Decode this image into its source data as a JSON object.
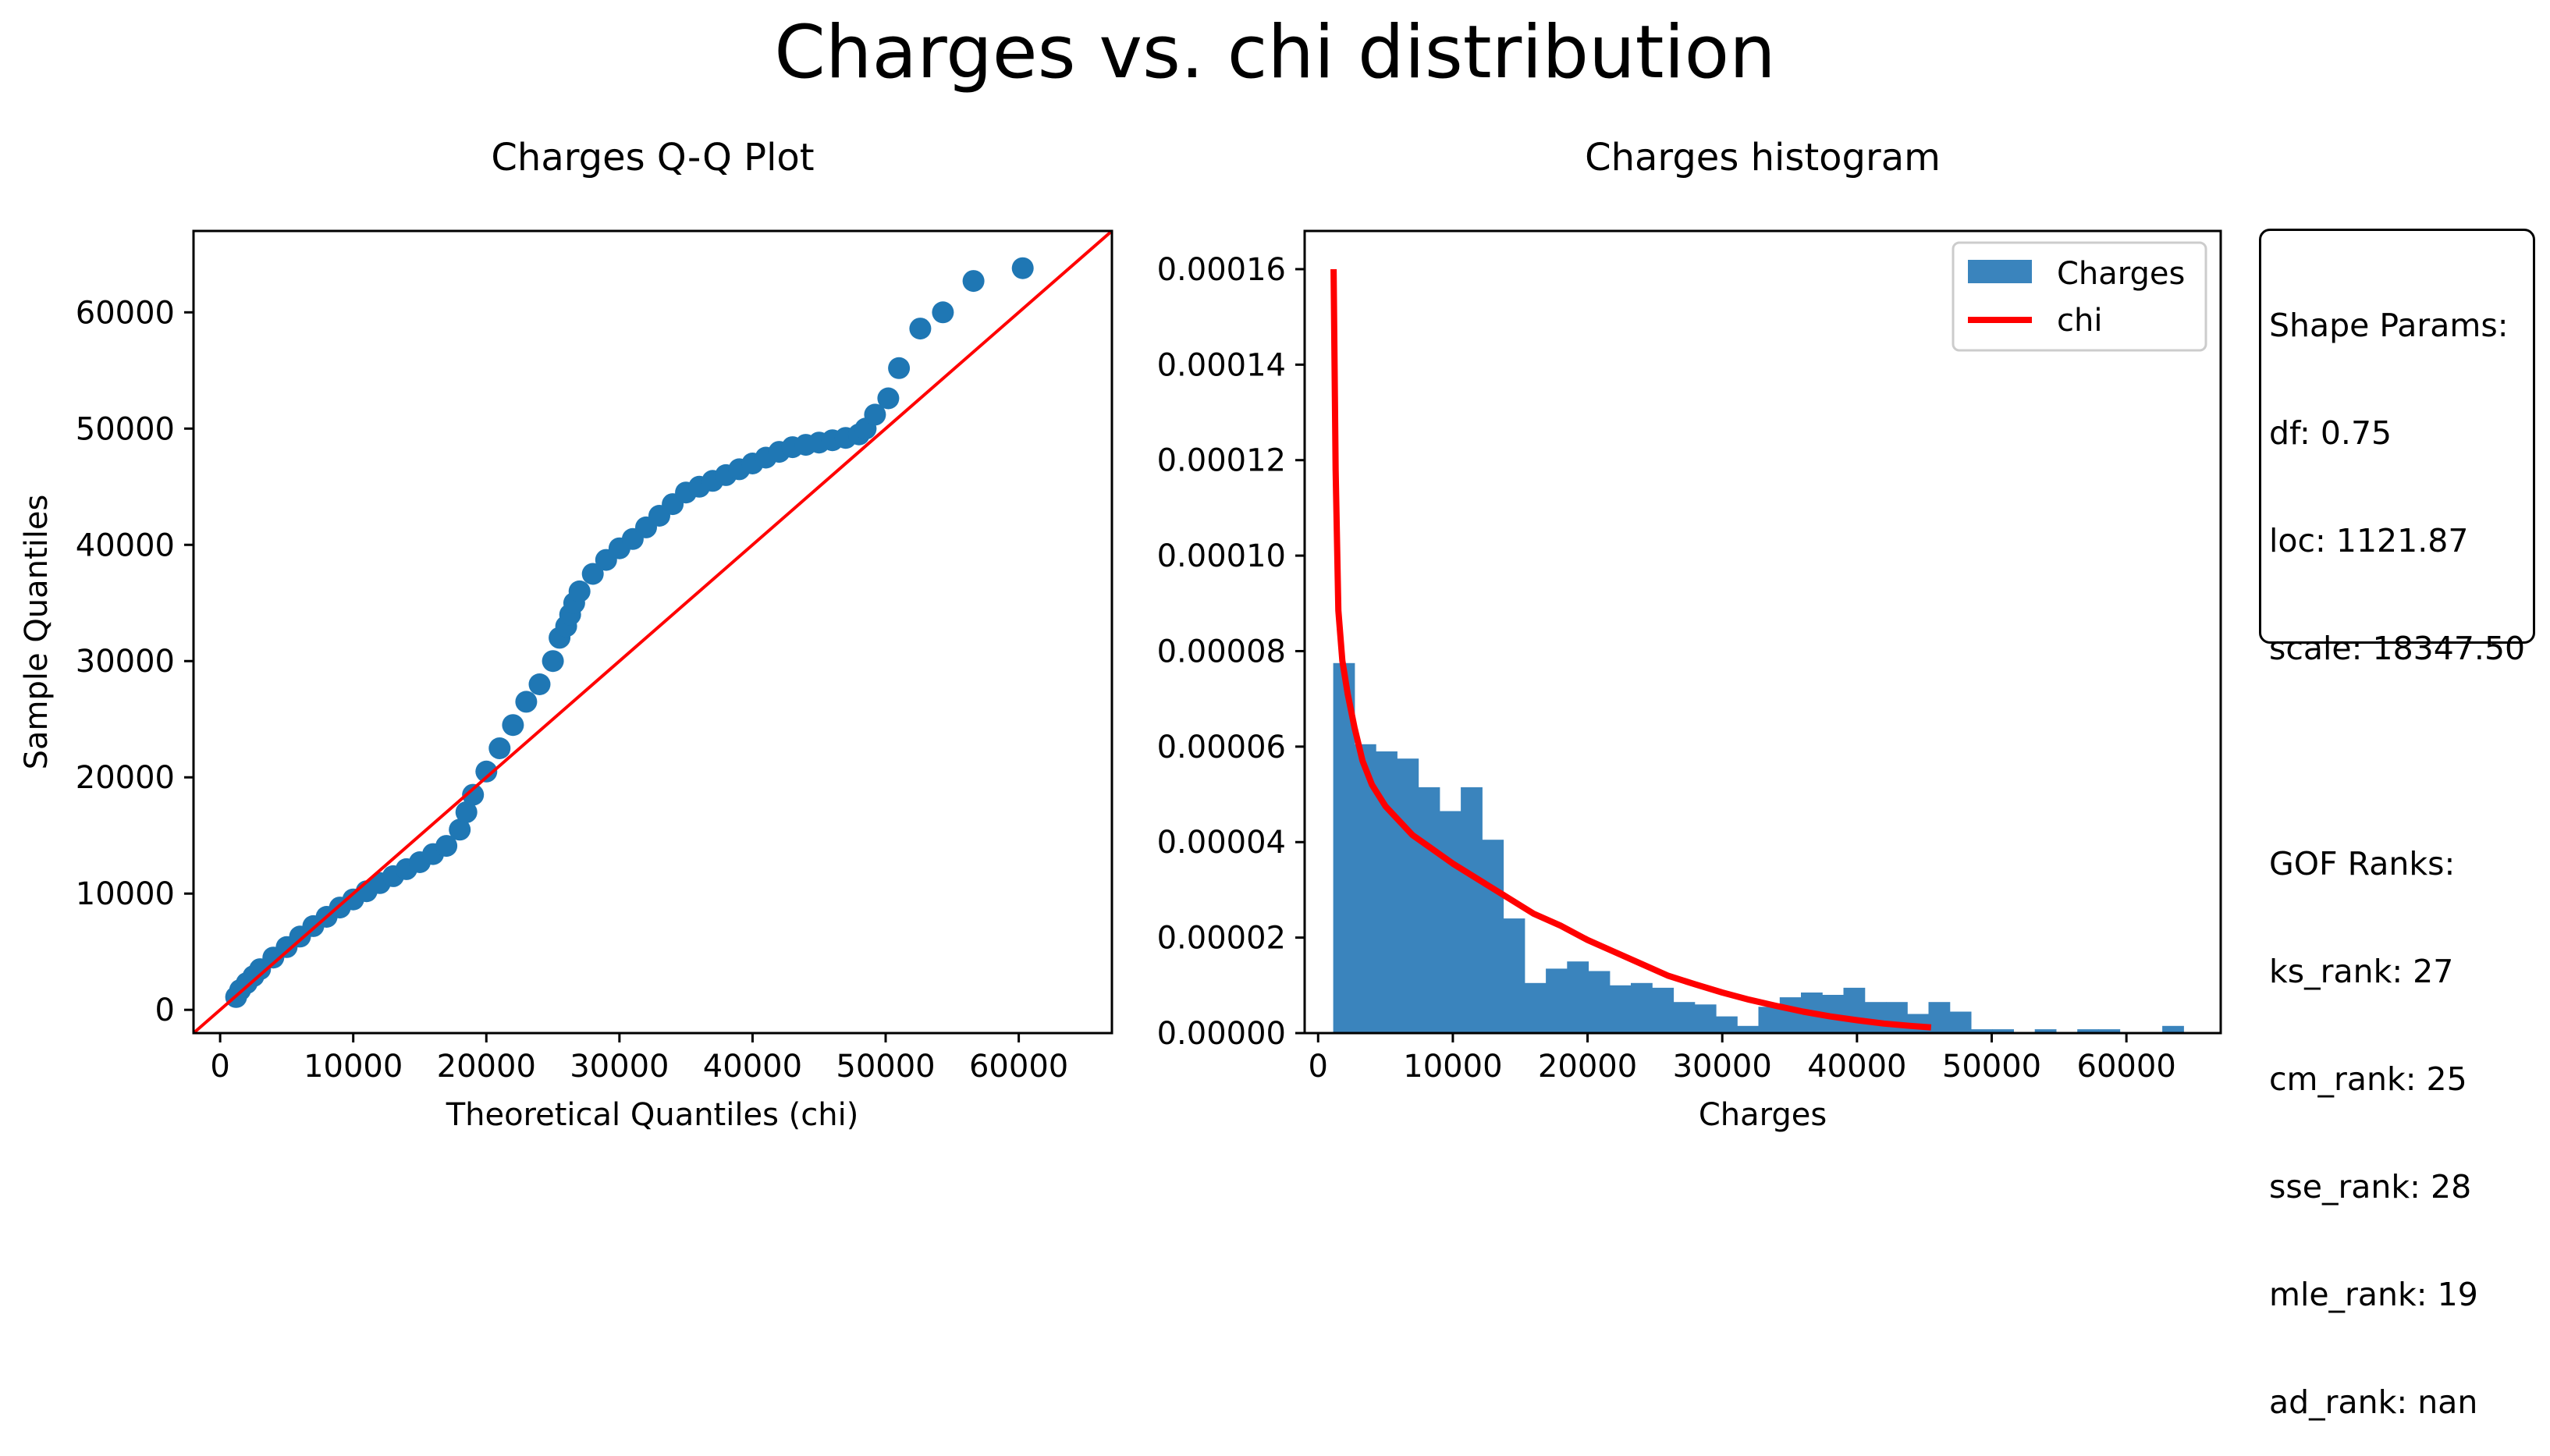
{
  "figure": {
    "title": "Charges vs. chi distribution"
  },
  "qq_plot": {
    "title": "Charges Q-Q Plot",
    "xlabel": "Theoretical Quantiles (chi)",
    "ylabel": "Sample Quantiles"
  },
  "histogram": {
    "title": "Charges histogram",
    "xlabel": "Charges",
    "legend": [
      "Charges",
      "chi"
    ]
  },
  "info_box": {
    "lines": [
      "Shape Params:",
      "df: 0.75",
      "loc: 1121.87",
      "scale: 18347.50",
      "",
      "GOF Ranks:",
      "ks_rank: 27",
      "cm_rank: 25",
      "sse_rank: 28",
      "mle_rank: 19",
      "ad_rank: nan"
    ]
  },
  "colors": {
    "points": "#1f77b4",
    "bars": "#3a84bd",
    "reference_line": "#ff0000",
    "pdf_line": "#ff0000"
  },
  "chart_data": [
    {
      "type": "scatter",
      "title": "Charges Q-Q Plot",
      "xlabel": "Theoretical Quantiles (chi)",
      "ylabel": "Sample Quantiles",
      "xlim": [
        -2000,
        67000
      ],
      "ylim": [
        -2000,
        67000
      ],
      "xticks": [
        0,
        10000,
        20000,
        30000,
        40000,
        50000,
        60000
      ],
      "yticks": [
        0,
        10000,
        20000,
        30000,
        40000,
        50000,
        60000
      ],
      "reference_line": {
        "slope": 1,
        "intercept": 0
      },
      "x": [
        1200,
        1500,
        2000,
        2500,
        3000,
        4000,
        5000,
        6000,
        7000,
        8000,
        9000,
        10000,
        11000,
        12000,
        13000,
        14000,
        15000,
        16000,
        17000,
        18000,
        18500,
        19000,
        20000,
        21000,
        22000,
        23000,
        24000,
        25000,
        25500,
        26000,
        26300,
        26600,
        27000,
        28000,
        29000,
        30000,
        31000,
        32000,
        33000,
        34000,
        35000,
        36000,
        37000,
        38000,
        39000,
        40000,
        41000,
        42000,
        43000,
        44000,
        45000,
        46000,
        47000,
        48000,
        48500,
        49200,
        50200,
        51000,
        52600,
        54300,
        56600,
        60300
      ],
      "y": [
        1100,
        1700,
        2300,
        2900,
        3500,
        4500,
        5400,
        6300,
        7200,
        8000,
        8800,
        9500,
        10200,
        10900,
        11500,
        12100,
        12700,
        13400,
        14100,
        15500,
        17000,
        18500,
        20500,
        22500,
        24500,
        26500,
        28000,
        30000,
        32000,
        33000,
        34000,
        35000,
        36000,
        37500,
        38700,
        39700,
        40500,
        41500,
        42500,
        43500,
        44500,
        45000,
        45500,
        46000,
        46500,
        47000,
        47500,
        48000,
        48400,
        48600,
        48800,
        49000,
        49200,
        49500,
        50000,
        51200,
        52600,
        55200,
        58600,
        60000,
        62700,
        63800
      ]
    },
    {
      "type": "bar",
      "title": "Charges histogram",
      "xlabel": "Charges",
      "xlim": [
        -1000,
        67000
      ],
      "ylim": [
        0,
        0.000168
      ],
      "xticks": [
        0,
        10000,
        20000,
        30000,
        40000,
        50000,
        60000
      ],
      "yticks": [
        0.0,
        2e-05,
        4e-05,
        6e-05,
        8e-05,
        0.0001,
        0.00012,
        0.00014,
        0.00016
      ],
      "ytick_labels": [
        "0.00000",
        "0.00002",
        "0.00004",
        "0.00006",
        "0.00008",
        "0.00010",
        "0.00012",
        "0.00014",
        "0.00016"
      ],
      "bin_start": 1121.87,
      "bin_width": 1578,
      "values": [
        7.75e-05,
        6.05e-05,
        5.9e-05,
        5.75e-05,
        5.15e-05,
        4.65e-05,
        5.15e-05,
        4.05e-05,
        2.4e-05,
        1.05e-05,
        1.35e-05,
        1.5e-05,
        1.3e-05,
        1e-05,
        1.05e-05,
        9.5e-06,
        6.5e-06,
        6e-06,
        3.5e-06,
        1.5e-06,
        5.5e-06,
        7.5e-06,
        8.5e-06,
        8e-06,
        9.5e-06,
        6.5e-06,
        6.5e-06,
        4e-06,
        6.5e-06,
        4.5e-06,
        8e-07,
        8e-07,
        0.0,
        8e-07,
        0.0,
        8e-07,
        8e-07,
        0.0,
        0.0,
        1.5e-06
      ],
      "series": [
        {
          "name": "chi",
          "type": "line",
          "x": [
            1150,
            1300,
            1500,
            1800,
            2200,
            2700,
            3300,
            4000,
            5000,
            6000,
            7000,
            8000,
            9000,
            10000,
            12000,
            14000,
            16000,
            18000,
            20000,
            22000,
            24000,
            26000,
            28000,
            30000,
            32000,
            34000,
            36000,
            38000,
            40000,
            42000,
            44000,
            45500
          ],
          "y": [
            0.00016,
            0.000118,
            8.85e-05,
            7.8e-05,
            7.1e-05,
            6.4e-05,
            5.7e-05,
            5.2e-05,
            4.75e-05,
            4.45e-05,
            4.15e-05,
            3.95e-05,
            3.75e-05,
            3.55e-05,
            3.2e-05,
            2.85e-05,
            2.5e-05,
            2.25e-05,
            1.95e-05,
            1.7e-05,
            1.45e-05,
            1.2e-05,
            1.02e-05,
            8.5e-06,
            7e-06,
            5.7e-06,
            4.5e-06,
            3.5e-06,
            2.7e-06,
            2e-06,
            1.5e-06,
            1.2e-06
          ]
        }
      ]
    }
  ]
}
